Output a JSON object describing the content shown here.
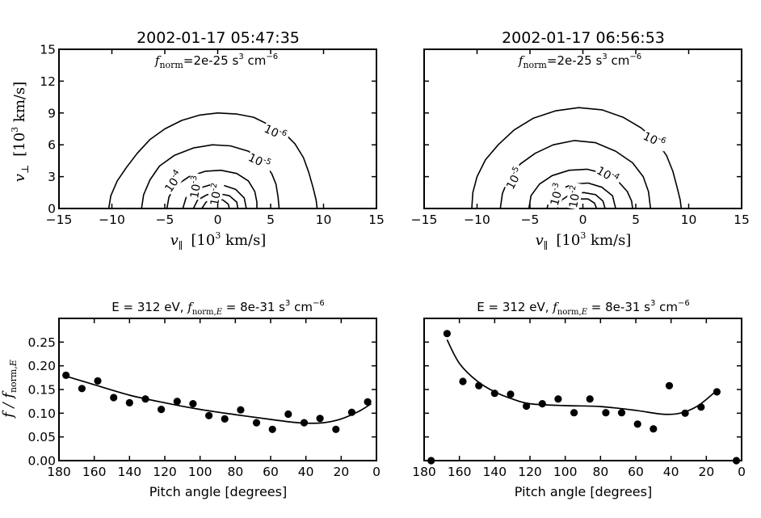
{
  "chart_data": [
    {
      "type": "contour",
      "panel": "top-left",
      "title": "2002-01-17 05:47:35",
      "annotation": {
        "var": "f",
        "sub": "norm",
        "value": "=2e-25 s",
        "exp1": "3",
        "mid": " cm",
        "exp2": "−6"
      },
      "xlabel": {
        "var": "v",
        "sub": "∥",
        "unit": "[10",
        "unit_exp": "3",
        "unit_rest": " km/s]"
      },
      "ylabel": {
        "var": "v",
        "sub": "⊥",
        "unit": "[10",
        "unit_exp": "3",
        "unit_rest": " km/s]"
      },
      "xlim": [
        -15,
        15
      ],
      "ylim": [
        0,
        15
      ],
      "xticks": [
        "−15",
        "−10",
        "−5",
        "0",
        "5",
        "10",
        "15"
      ],
      "yticks": [
        "0",
        "3",
        "6",
        "9",
        "12",
        "15"
      ],
      "contours": [
        {
          "level": "10",
          "level_exp": "-6",
          "points": [
            [
              -10.3,
              0
            ],
            [
              -10.1,
              1.2
            ],
            [
              -9.5,
              2.6
            ],
            [
              -8.6,
              3.9
            ],
            [
              -7.6,
              5.2
            ],
            [
              -6.4,
              6.5
            ],
            [
              -5.0,
              7.5
            ],
            [
              -3.4,
              8.3
            ],
            [
              -1.7,
              8.8
            ],
            [
              0,
              9.0
            ],
            [
              1.8,
              8.9
            ],
            [
              3.4,
              8.6
            ],
            [
              4.8,
              7.9
            ],
            [
              6.2,
              7.2
            ],
            [
              7.3,
              6.1
            ],
            [
              8.1,
              4.8
            ],
            [
              8.6,
              3.4
            ],
            [
              9.0,
              2.0
            ],
            [
              9.3,
              0.8
            ],
            [
              9.4,
              0
            ]
          ]
        },
        {
          "level": "10",
          "level_exp": "-5",
          "points": [
            [
              -7.2,
              0
            ],
            [
              -7.0,
              1.3
            ],
            [
              -6.4,
              2.7
            ],
            [
              -5.5,
              4.0
            ],
            [
              -4.1,
              5.0
            ],
            [
              -2.3,
              5.7
            ],
            [
              -0.5,
              6.0
            ],
            [
              1.2,
              5.9
            ],
            [
              2.9,
              5.4
            ],
            [
              4.3,
              4.4
            ],
            [
              5.1,
              3.3
            ],
            [
              5.5,
              2.3
            ],
            [
              5.7,
              1.1
            ],
            [
              5.8,
              0
            ]
          ]
        },
        {
          "level": "10",
          "level_exp": "-4",
          "points": [
            [
              -4.8,
              0
            ],
            [
              -4.6,
              1.1
            ],
            [
              -3.9,
              2.2
            ],
            [
              -2.7,
              3.0
            ],
            [
              -1.2,
              3.5
            ],
            [
              0.3,
              3.6
            ],
            [
              1.8,
              3.3
            ],
            [
              2.9,
              2.6
            ],
            [
              3.5,
              1.6
            ],
            [
              3.7,
              0.6
            ],
            [
              3.7,
              0
            ]
          ]
        },
        {
          "level": "10",
          "level_exp": "-3",
          "points": [
            [
              -3.3,
              0
            ],
            [
              -3.0,
              1.0
            ],
            [
              -2.1,
              1.8
            ],
            [
              -0.8,
              2.2
            ],
            [
              0.5,
              2.2
            ],
            [
              1.7,
              1.8
            ],
            [
              2.5,
              1.0
            ],
            [
              2.7,
              0
            ]
          ]
        },
        {
          "level": "10",
          "level_exp": "-2",
          "points": [
            [
              -2.3,
              0
            ],
            [
              -1.9,
              0.8
            ],
            [
              -1.0,
              1.3
            ],
            [
              0.1,
              1.4
            ],
            [
              1.1,
              1.2
            ],
            [
              1.8,
              0.6
            ],
            [
              1.9,
              0
            ]
          ]
        },
        {
          "level": "",
          "level_exp": "",
          "points": [
            [
              -1.5,
              0
            ],
            [
              -1.1,
              0.6
            ],
            [
              -0.3,
              0.9
            ],
            [
              0.5,
              0.8
            ],
            [
              1.0,
              0.4
            ],
            [
              1.1,
              0
            ]
          ]
        }
      ]
    },
    {
      "type": "contour",
      "panel": "top-right",
      "title": "2002-01-17 06:56:53",
      "annotation": {
        "var": "f",
        "sub": "norm",
        "value": "=2e-25 s",
        "exp1": "3",
        "mid": " cm",
        "exp2": "−6"
      },
      "xlabel": {
        "var": "v",
        "sub": "∥",
        "unit": "[10",
        "unit_exp": "3",
        "unit_rest": " km/s]"
      },
      "xlim": [
        -15,
        15
      ],
      "ylim": [
        0,
        15
      ],
      "xticks": [
        "−15",
        "−10",
        "−5",
        "0",
        "5",
        "10",
        "15"
      ],
      "contours": [
        {
          "level": "10",
          "level_exp": "-6",
          "points": [
            [
              -10.5,
              0
            ],
            [
              -10.4,
              1.5
            ],
            [
              -10.0,
              3.0
            ],
            [
              -9.2,
              4.6
            ],
            [
              -8.0,
              6.0
            ],
            [
              -6.5,
              7.4
            ],
            [
              -4.7,
              8.5
            ],
            [
              -2.6,
              9.2
            ],
            [
              -0.4,
              9.5
            ],
            [
              1.8,
              9.3
            ],
            [
              3.8,
              8.6
            ],
            [
              5.5,
              7.6
            ],
            [
              6.9,
              6.4
            ],
            [
              7.9,
              5.0
            ],
            [
              8.5,
              3.5
            ],
            [
              8.9,
              2.0
            ],
            [
              9.2,
              0.8
            ],
            [
              9.3,
              0
            ]
          ]
        },
        {
          "level": "10",
          "level_exp": "-5",
          "points": [
            [
              -7.8,
              0
            ],
            [
              -7.6,
              1.4
            ],
            [
              -7.0,
              2.9
            ],
            [
              -5.9,
              4.2
            ],
            [
              -4.5,
              5.2
            ],
            [
              -2.8,
              6.0
            ],
            [
              -0.8,
              6.4
            ],
            [
              1.2,
              6.2
            ],
            [
              3.1,
              5.4
            ],
            [
              4.7,
              4.3
            ],
            [
              5.7,
              3.0
            ],
            [
              6.2,
              1.6
            ],
            [
              6.4,
              0
            ]
          ]
        },
        {
          "level": "10",
          "level_exp": "-4",
          "points": [
            [
              -5.1,
              0
            ],
            [
              -4.9,
              1.2
            ],
            [
              -4.1,
              2.3
            ],
            [
              -2.9,
              3.1
            ],
            [
              -1.3,
              3.6
            ],
            [
              0.4,
              3.7
            ],
            [
              2.0,
              3.3
            ],
            [
              3.3,
              2.6
            ],
            [
              4.2,
              1.6
            ],
            [
              4.6,
              0.7
            ],
            [
              4.7,
              0
            ]
          ]
        },
        {
          "level": "10",
          "level_exp": "-3",
          "points": [
            [
              -3.4,
              0
            ],
            [
              -3.1,
              1.0
            ],
            [
              -2.2,
              1.8
            ],
            [
              -0.9,
              2.3
            ],
            [
              0.5,
              2.4
            ],
            [
              1.8,
              2.0
            ],
            [
              2.8,
              1.2
            ],
            [
              3.1,
              0
            ]
          ]
        },
        {
          "level": "10",
          "level_exp": "-2",
          "points": [
            [
              -2.4,
              0
            ],
            [
              -2.0,
              0.8
            ],
            [
              -1.1,
              1.4
            ],
            [
              0.1,
              1.5
            ],
            [
              1.2,
              1.3
            ],
            [
              1.9,
              0.7
            ],
            [
              2.1,
              0
            ]
          ]
        },
        {
          "level": "",
          "level_exp": "",
          "points": [
            [
              -1.6,
              0
            ],
            [
              -1.2,
              0.6
            ],
            [
              -0.4,
              0.9
            ],
            [
              0.5,
              0.9
            ],
            [
              1.1,
              0.5
            ],
            [
              1.3,
              0
            ]
          ]
        }
      ]
    },
    {
      "type": "scatter",
      "panel": "bottom-left",
      "title": {
        "prefix": "E = 312 eV, ",
        "var": "f",
        "sub": "norm,",
        "sub_var": "E",
        "rest": " = 8e-31 s",
        "exp1": "3",
        "mid": " cm",
        "exp2": "−6"
      },
      "xlabel": "Pitch angle [degrees]",
      "ylabel": {
        "var": "f / f",
        "sub": "norm,",
        "sub_var": "E"
      },
      "xlim": [
        180,
        0
      ],
      "ylim": [
        0,
        0.3
      ],
      "xticks": [
        "180",
        "160",
        "140",
        "120",
        "100",
        "80",
        "60",
        "40",
        "20",
        "0"
      ],
      "yticks": [
        "0.00",
        "0.05",
        "0.10",
        "0.15",
        "0.20",
        "0.25"
      ],
      "points": {
        "x": [
          176,
          167,
          158,
          149,
          140,
          131,
          122,
          113,
          104,
          95,
          86,
          77,
          68,
          59,
          50,
          41,
          32,
          23,
          14,
          5
        ],
        "y": [
          0.18,
          0.152,
          0.168,
          0.133,
          0.122,
          0.13,
          0.108,
          0.125,
          0.12,
          0.095,
          0.088,
          0.107,
          0.08,
          0.066,
          0.098,
          0.08,
          0.089,
          0.066,
          0.102,
          0.124
        ]
      },
      "fit": {
        "x": [
          176,
          160,
          140,
          120,
          100,
          80,
          60,
          50,
          40,
          30,
          20,
          10,
          3
        ],
        "y": [
          0.178,
          0.16,
          0.138,
          0.122,
          0.108,
          0.097,
          0.087,
          0.082,
          0.079,
          0.08,
          0.088,
          0.104,
          0.12
        ]
      }
    },
    {
      "type": "scatter",
      "panel": "bottom-right",
      "title": {
        "prefix": "E = 312 eV, ",
        "var": "f",
        "sub": "norm,",
        "sub_var": "E",
        "rest": " = 8e-31 s",
        "exp1": "3",
        "mid": " cm",
        "exp2": "−6"
      },
      "xlabel": "Pitch angle [degrees]",
      "xlim": [
        180,
        0
      ],
      "ylim": [
        0,
        0.3
      ],
      "xticks": [
        "180",
        "160",
        "140",
        "120",
        "100",
        "80",
        "60",
        "40",
        "20",
        "0"
      ],
      "points": {
        "x": [
          176,
          167,
          158,
          149,
          140,
          131,
          122,
          113,
          104,
          95,
          86,
          77,
          68,
          59,
          50,
          41,
          32,
          23,
          14,
          3
        ],
        "y": [
          0.0,
          0.268,
          0.167,
          0.158,
          0.142,
          0.14,
          0.115,
          0.12,
          0.13,
          0.101,
          0.13,
          0.101,
          0.101,
          0.077,
          0.067,
          0.158,
          0.1,
          0.113,
          0.145,
          0.0
        ]
      },
      "fit": {
        "x": [
          167,
          160,
          150,
          140,
          130,
          120,
          100,
          80,
          60,
          45,
          35,
          25,
          15
        ],
        "y": [
          0.255,
          0.205,
          0.168,
          0.145,
          0.13,
          0.12,
          0.116,
          0.114,
          0.106,
          0.098,
          0.1,
          0.115,
          0.145
        ]
      }
    }
  ]
}
